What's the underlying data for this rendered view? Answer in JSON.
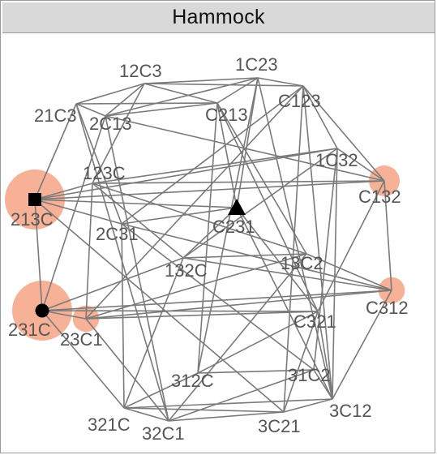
{
  "window": {
    "title": "Hammock"
  },
  "colors": {
    "halo": "#f4a385",
    "edge": "#7a7a7a",
    "label": "#555555",
    "marker": "#000000"
  },
  "nodes": [
    {
      "id": "12C3",
      "label": "12C3"
    },
    {
      "id": "1C23",
      "label": "1C23"
    },
    {
      "id": "21C3",
      "label": "21C3"
    },
    {
      "id": "2C13",
      "label": "2C13"
    },
    {
      "id": "C213",
      "label": "C213"
    },
    {
      "id": "C123",
      "label": "C123"
    },
    {
      "id": "1C32",
      "label": "1C32"
    },
    {
      "id": "C132",
      "label": "C132",
      "weight": 1
    },
    {
      "id": "123C",
      "label": "123C"
    },
    {
      "id": "213C",
      "label": "213C",
      "weight": 3,
      "marker": "square"
    },
    {
      "id": "C231",
      "label": "C231",
      "marker": "triangle"
    },
    {
      "id": "2C31",
      "label": "2C31"
    },
    {
      "id": "132C",
      "label": "132C"
    },
    {
      "id": "13C2",
      "label": "13C2"
    },
    {
      "id": "C312",
      "label": "C312",
      "weight": 0.7
    },
    {
      "id": "231C",
      "label": "231C",
      "weight": 3,
      "marker": "circle"
    },
    {
      "id": "23C1",
      "label": "23C1",
      "weight": 0.7
    },
    {
      "id": "C321",
      "label": "C321"
    },
    {
      "id": "312C",
      "label": "312C"
    },
    {
      "id": "31C2",
      "label": "31C2"
    },
    {
      "id": "321C",
      "label": "321C"
    },
    {
      "id": "32C1",
      "label": "32C1"
    },
    {
      "id": "3C21",
      "label": "3C21"
    },
    {
      "id": "3C12",
      "label": "3C12"
    }
  ]
}
